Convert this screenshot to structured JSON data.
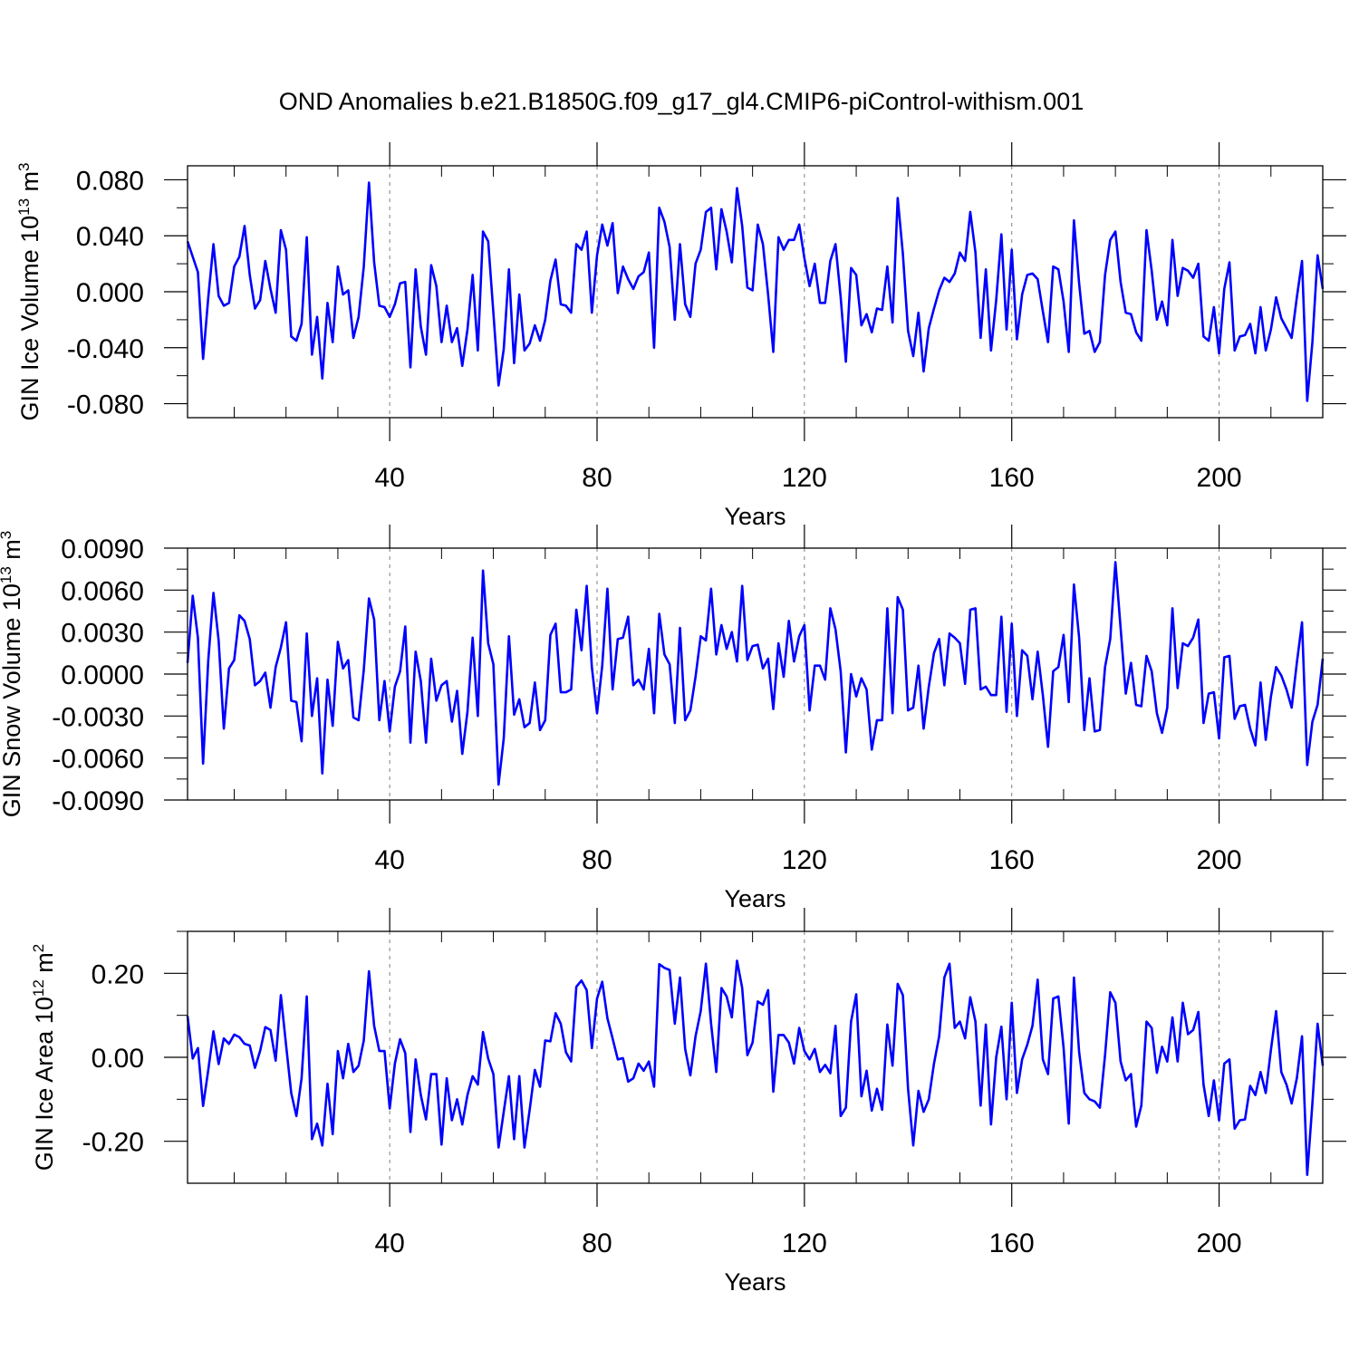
{
  "title": "OND Anomalies b.e21.B1850G.f09_g17_gl4.CMIP6-piControl-withism.001",
  "colors": {
    "line": "#0000ff",
    "axis": "#000000",
    "grid": "#808080",
    "background": "#ffffff"
  },
  "chart_data": [
    {
      "type": "line",
      "title": "OND Anomalies b.e21.B1850G.f09_g17_gl4.CMIP6-piControl-withism.001",
      "xlabel": "Years",
      "ylabel": "GIN Ice Volume 10",
      "ylabel_exp": "13",
      "ylabel_unit": " m",
      "ylabel_unit_exp": "3",
      "xlim": [
        1,
        220
      ],
      "ylim": [
        -0.09,
        0.09
      ],
      "xticks": [
        40,
        80,
        120,
        160,
        200
      ],
      "xtick_labels": [
        "40",
        "80",
        "120",
        "160",
        "200"
      ],
      "yticks": [
        0.08,
        0.04,
        0.0,
        -0.04,
        -0.08
      ],
      "ytick_labels": [
        "0.080",
        "0.040",
        "0.000",
        "-0.040",
        "-0.080"
      ],
      "x_start": 1,
      "values": [
        0.036,
        0.025,
        0.014,
        -0.048,
        -0.004,
        0.034,
        -0.003,
        -0.01,
        -0.008,
        0.018,
        0.025,
        0.047,
        0.012,
        -0.012,
        -0.006,
        0.022,
        0.002,
        -0.015,
        0.044,
        0.03,
        -0.032,
        -0.035,
        -0.023,
        0.039,
        -0.045,
        -0.018,
        -0.062,
        -0.008,
        -0.036,
        0.018,
        -0.002,
        0.001,
        -0.033,
        -0.018,
        0.018,
        0.078,
        0.021,
        -0.01,
        -0.011,
        -0.018,
        -0.009,
        0.006,
        0.007,
        -0.054,
        0.016,
        -0.025,
        -0.045,
        0.019,
        0.004,
        -0.036,
        -0.01,
        -0.036,
        -0.026,
        -0.053,
        -0.027,
        0.012,
        -0.042,
        0.043,
        0.036,
        -0.015,
        -0.067,
        -0.041,
        0.016,
        -0.051,
        -0.002,
        -0.042,
        -0.037,
        -0.024,
        -0.035,
        -0.02,
        0.008,
        0.023,
        -0.009,
        -0.01,
        -0.015,
        0.034,
        0.03,
        0.043,
        -0.015,
        0.026,
        0.048,
        0.033,
        0.049,
        -0.001,
        0.018,
        0.009,
        0.002,
        0.011,
        0.014,
        0.028,
        -0.04,
        0.06,
        0.05,
        0.032,
        -0.02,
        0.034,
        -0.009,
        -0.018,
        0.02,
        0.03,
        0.057,
        0.06,
        0.016,
        0.059,
        0.043,
        0.021,
        0.074,
        0.047,
        0.003,
        0.001,
        0.048,
        0.034,
        -0.002,
        -0.043,
        0.039,
        0.03,
        0.037,
        0.037,
        0.048,
        0.024,
        0.004,
        0.02,
        -0.008,
        -0.008,
        0.022,
        0.034,
        -0.004,
        -0.05,
        0.017,
        0.012,
        -0.024,
        -0.016,
        -0.029,
        -0.012,
        -0.013,
        0.018,
        -0.022,
        0.067,
        0.027,
        -0.028,
        -0.046,
        -0.015,
        -0.057,
        -0.026,
        -0.012,
        0.001,
        0.01,
        0.007,
        0.013,
        0.028,
        0.022,
        0.057,
        0.028,
        -0.033,
        0.016,
        -0.042,
        -0.006,
        0.041,
        -0.027,
        0.03,
        -0.034,
        -0.002,
        0.012,
        0.013,
        0.009,
        -0.014,
        -0.036,
        0.018,
        0.016,
        -0.007,
        -0.043,
        0.051,
        0.006,
        -0.03,
        -0.028,
        -0.043,
        -0.036,
        0.012,
        0.037,
        0.043,
        0.007,
        -0.015,
        -0.016,
        -0.029,
        -0.035,
        0.044,
        0.015,
        -0.02,
        -0.007,
        -0.024,
        0.037,
        -0.003,
        0.017,
        0.015,
        0.01,
        0.02,
        -0.032,
        -0.035,
        -0.011,
        -0.044,
        0.002,
        0.021,
        -0.042,
        -0.032,
        -0.031,
        -0.023,
        -0.044,
        -0.011,
        -0.042,
        -0.027,
        -0.004,
        -0.019,
        -0.026,
        -0.033,
        -0.004,
        0.022,
        -0.078,
        -0.036,
        0.026,
        0.002
      ]
    },
    {
      "type": "line",
      "xlabel": "Years",
      "ylabel": "GIN Snow Volume 10",
      "ylabel_exp": "13",
      "ylabel_unit": " m",
      "ylabel_unit_exp": "3",
      "xlim": [
        1,
        220
      ],
      "ylim": [
        -0.009,
        0.009
      ],
      "xticks": [
        40,
        80,
        120,
        160,
        200
      ],
      "xtick_labels": [
        "40",
        "80",
        "120",
        "160",
        "200"
      ],
      "yticks": [
        0.009,
        0.006,
        0.003,
        0.0,
        -0.003,
        -0.006,
        -0.009
      ],
      "ytick_labels": [
        "0.0090",
        "0.0060",
        "0.0030",
        "0.0000",
        "-0.0030",
        "-0.0060",
        "-0.0090"
      ],
      "x_start": 1,
      "values": [
        0.0008,
        0.0056,
        0.0026,
        -0.0064,
        0.001,
        0.0058,
        0.0024,
        -0.0039,
        0.0004,
        0.001,
        0.0042,
        0.0038,
        0.0025,
        -0.0008,
        -0.0005,
        0.0001,
        -0.0024,
        0.0005,
        0.0019,
        0.0037,
        -0.0019,
        -0.002,
        -0.0048,
        0.0029,
        -0.003,
        -0.0003,
        -0.0071,
        -0.0004,
        -0.0037,
        0.0023,
        0.0004,
        0.001,
        -0.0031,
        -0.0033,
        0.0003,
        0.0054,
        0.0039,
        -0.0033,
        -0.0005,
        -0.0041,
        -0.0009,
        0.0002,
        0.0034,
        -0.0049,
        0.0016,
        -0.0005,
        -0.0049,
        0.0011,
        -0.0019,
        -0.0008,
        -0.0005,
        -0.0034,
        -0.0012,
        -0.0057,
        -0.0027,
        0.0026,
        -0.003,
        0.0074,
        0.0022,
        0.0007,
        -0.0079,
        -0.0046,
        0.0027,
        -0.0029,
        -0.0018,
        -0.0038,
        -0.0035,
        -0.0006,
        -0.004,
        -0.0033,
        0.0028,
        0.0036,
        -0.0013,
        -0.0013,
        -0.0011,
        0.0046,
        0.0017,
        0.0063,
        0.0005,
        -0.0028,
        0.0006,
        0.0061,
        -0.0011,
        0.0025,
        0.0026,
        0.0041,
        -0.0008,
        -0.0004,
        -0.0011,
        0.0018,
        -0.0028,
        0.0043,
        0.0014,
        0.0007,
        -0.0035,
        0.0033,
        -0.0033,
        -0.0026,
        -0.0002,
        0.0027,
        0.0024,
        0.0061,
        0.0014,
        0.0035,
        0.0018,
        0.003,
        0.0009,
        0.0063,
        0.001,
        0.002,
        0.0021,
        0.0004,
        0.0011,
        -0.0025,
        0.0022,
        -0.0002,
        0.0038,
        0.0009,
        0.0027,
        0.0035,
        -0.0026,
        0.0006,
        0.0006,
        -0.0004,
        0.0047,
        0.0032,
        0.0002,
        -0.0056,
        0.0,
        -0.0016,
        -0.0003,
        -0.0011,
        -0.0054,
        -0.0033,
        -0.0033,
        0.0047,
        -0.0028,
        0.0055,
        0.0046,
        -0.0026,
        -0.0024,
        0.0006,
        -0.0039,
        -0.0009,
        0.0015,
        0.0025,
        -0.0008,
        0.0029,
        0.0026,
        0.0022,
        -0.0007,
        0.0046,
        0.0047,
        -0.0011,
        -0.0009,
        -0.0015,
        -0.0015,
        0.0041,
        -0.0027,
        0.0036,
        -0.003,
        0.0017,
        0.0013,
        -0.0018,
        0.0016,
        -0.0015,
        -0.0052,
        0.0002,
        0.0005,
        0.0028,
        -0.002,
        0.0064,
        0.0026,
        -0.004,
        -0.0003,
        -0.0041,
        -0.004,
        0.0005,
        0.0025,
        0.008,
        0.0033,
        -0.0014,
        0.0008,
        -0.0022,
        -0.0023,
        0.0013,
        0.0002,
        -0.0028,
        -0.0042,
        -0.0024,
        0.0047,
        -0.001,
        0.0022,
        0.002,
        0.0026,
        0.0039,
        -0.0035,
        -0.0014,
        -0.0013,
        -0.0046,
        0.0012,
        0.0013,
        -0.0032,
        -0.0023,
        -0.0022,
        -0.0039,
        -0.0051,
        -0.0006,
        -0.0047,
        -0.0016,
        0.0005,
        -0.0001,
        -0.0011,
        -0.0024,
        0.0008,
        0.0037,
        -0.0065,
        -0.0034,
        -0.0022,
        0.0011
      ]
    },
    {
      "type": "line",
      "xlabel": "Years",
      "ylabel": "GIN Ice Area 10",
      "ylabel_exp": "12",
      "ylabel_unit": " m",
      "ylabel_unit_exp": "2",
      "xlim": [
        1,
        220
      ],
      "ylim": [
        -0.3,
        0.3
      ],
      "xticks": [
        40,
        80,
        120,
        160,
        200
      ],
      "xtick_labels": [
        "40",
        "80",
        "120",
        "160",
        "200"
      ],
      "yticks": [
        0.2,
        0.0,
        -0.2
      ],
      "ytick_labels": [
        "0.20",
        "0.00",
        "-0.20"
      ],
      "x_start": 1,
      "values": [
        0.098,
        -0.003,
        0.022,
        -0.116,
        -0.03,
        0.062,
        -0.016,
        0.045,
        0.032,
        0.054,
        0.048,
        0.032,
        0.028,
        -0.025,
        0.015,
        0.072,
        0.065,
        -0.008,
        0.148,
        0.03,
        -0.085,
        -0.14,
        -0.05,
        0.145,
        -0.195,
        -0.158,
        -0.21,
        -0.063,
        -0.183,
        0.015,
        -0.05,
        0.032,
        -0.035,
        -0.02,
        0.04,
        0.205,
        0.075,
        0.015,
        0.015,
        -0.122,
        -0.015,
        0.043,
        0.01,
        -0.178,
        -0.005,
        -0.09,
        -0.148,
        -0.04,
        -0.04,
        -0.208,
        -0.05,
        -0.15,
        -0.1,
        -0.16,
        -0.09,
        -0.045,
        -0.065,
        0.06,
        -0.003,
        -0.04,
        -0.215,
        -0.13,
        -0.045,
        -0.195,
        -0.045,
        -0.215,
        -0.125,
        -0.03,
        -0.07,
        0.04,
        0.038,
        0.105,
        0.08,
        0.012,
        -0.01,
        0.168,
        0.183,
        0.16,
        0.022,
        0.14,
        0.18,
        0.093,
        0.045,
        -0.005,
        -0.002,
        -0.058,
        -0.05,
        -0.015,
        -0.032,
        -0.01,
        -0.07,
        0.222,
        0.213,
        0.208,
        0.08,
        0.19,
        0.02,
        -0.043,
        0.05,
        0.11,
        0.223,
        0.08,
        -0.035,
        0.165,
        0.145,
        0.095,
        0.23,
        0.165,
        0.005,
        0.035,
        0.133,
        0.125,
        0.16,
        -0.082,
        0.053,
        0.053,
        0.035,
        -0.015,
        0.07,
        0.015,
        -0.005,
        0.02,
        -0.035,
        -0.018,
        -0.038,
        0.075,
        -0.14,
        -0.12,
        0.085,
        0.15,
        -0.093,
        -0.032,
        -0.127,
        -0.075,
        -0.125,
        0.078,
        -0.02,
        0.175,
        0.148,
        -0.075,
        -0.21,
        -0.08,
        -0.13,
        -0.1,
        -0.015,
        0.05,
        0.19,
        0.223,
        0.07,
        0.085,
        0.045,
        0.143,
        0.085,
        -0.115,
        0.078,
        -0.16,
        0.0,
        0.073,
        -0.1,
        0.13,
        -0.085,
        -0.005,
        0.03,
        0.075,
        0.185,
        -0.005,
        -0.04,
        0.14,
        0.145,
        0.023,
        -0.158,
        0.19,
        0.012,
        -0.085,
        -0.1,
        -0.105,
        -0.12,
        0.005,
        0.155,
        0.13,
        -0.01,
        -0.055,
        -0.04,
        -0.165,
        -0.115,
        0.085,
        0.07,
        -0.037,
        0.025,
        -0.01,
        0.095,
        -0.01,
        0.13,
        0.055,
        0.065,
        0.108,
        -0.065,
        -0.14,
        -0.055,
        -0.15,
        -0.015,
        -0.005,
        -0.17,
        -0.15,
        -0.148,
        -0.068,
        -0.09,
        -0.035,
        -0.085,
        0.018,
        0.11,
        -0.035,
        -0.065,
        -0.11,
        -0.05,
        0.05,
        -0.28,
        -0.11,
        0.08,
        -0.02
      ]
    }
  ]
}
